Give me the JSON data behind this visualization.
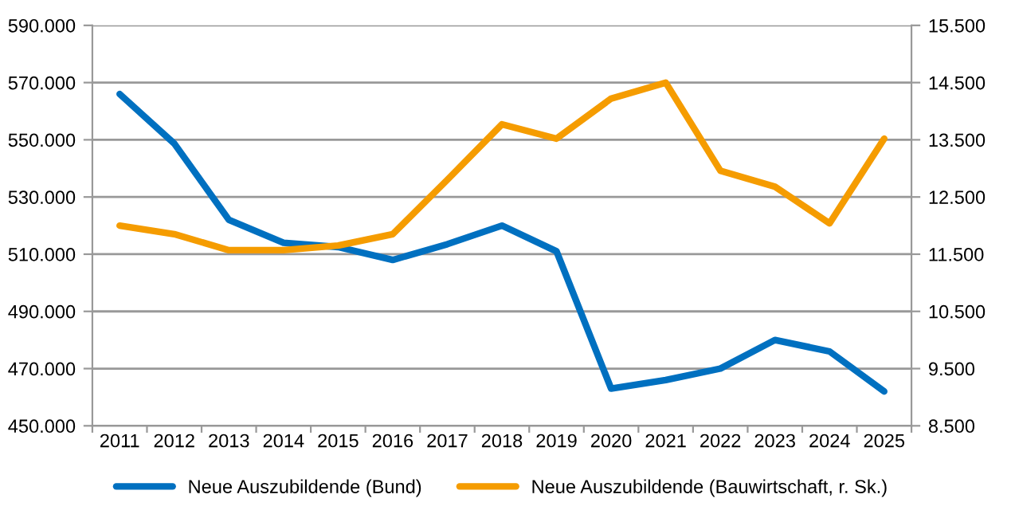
{
  "chart_data": {
    "type": "line",
    "categories": [
      "2011",
      "2012",
      "2013",
      "2014",
      "2015",
      "2016",
      "2017",
      "2018",
      "2019",
      "2020",
      "2021",
      "2022",
      "2023",
      "2024",
      "2025"
    ],
    "series": [
      {
        "name": "Neue Auszubildende (Bund)",
        "color": "#0070c0",
        "values": [
          566000,
          548700,
          522000,
          514000,
          512500,
          508000,
          513500,
          520000,
          511000,
          463000,
          466000,
          470000,
          480000,
          476000,
          462000
        ]
      },
      {
        "name": "Neue Auszubildende (Bauwirtschaft, r. Sk.)",
        "color": "#f59c00",
        "axis": "y2",
        "values": [
          12000,
          11850,
          11570,
          11570,
          11650,
          11850,
          12800,
          13770,
          13520,
          14220,
          14500,
          12960,
          12680,
          12040,
          13520
        ]
      }
    ],
    "ylim": [
      450000,
      590000
    ],
    "yticks": [
      {
        "value": 450000,
        "label": "450.000"
      },
      {
        "value": 470000,
        "label": "470.000"
      },
      {
        "value": 490000,
        "label": "490.000"
      },
      {
        "value": 510000,
        "label": "510.000"
      },
      {
        "value": 530000,
        "label": "530.000"
      },
      {
        "value": 550000,
        "label": "550.000"
      },
      {
        "value": 570000,
        "label": "570.000"
      },
      {
        "value": 590000,
        "label": "590.000"
      }
    ],
    "y2lim": [
      8500,
      15500
    ],
    "y2ticks": [
      {
        "value": 8500,
        "label": "8.500"
      },
      {
        "value": 9500,
        "label": "9.500"
      },
      {
        "value": 10500,
        "label": "10.500"
      },
      {
        "value": 11500,
        "label": "11.500"
      },
      {
        "value": 12500,
        "label": "12.500"
      },
      {
        "value": 13500,
        "label": "13.500"
      },
      {
        "value": 14500,
        "label": "14.500"
      },
      {
        "value": 15500,
        "label": "15.500"
      }
    ],
    "grid": "y",
    "legend": "bottom",
    "marker": "none",
    "line_style": "solid"
  }
}
